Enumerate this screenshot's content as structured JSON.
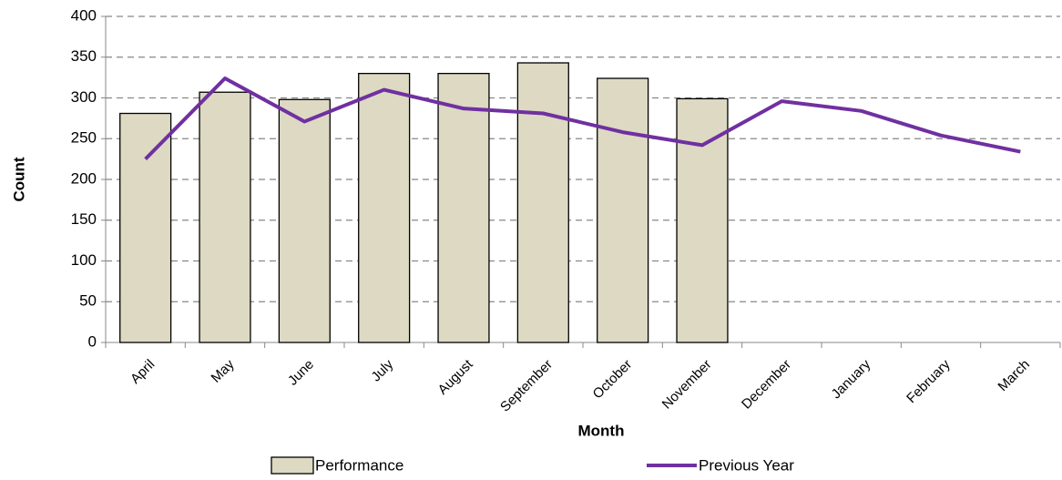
{
  "chart_data": {
    "type": "bar",
    "xlabel": "Month",
    "ylabel": "Count",
    "categories": [
      "April",
      "May",
      "June",
      "July",
      "August",
      "September",
      "October",
      "November",
      "December",
      "January",
      "February",
      "March"
    ],
    "series": [
      {
        "name": "Performance",
        "type": "bar",
        "color": "#ddd9c3",
        "values": [
          281,
          307,
          298,
          330,
          330,
          343,
          324,
          299,
          null,
          null,
          null,
          null
        ]
      },
      {
        "name": "Previous Year",
        "type": "line",
        "color": "#7030a0",
        "values": [
          225,
          324,
          271,
          310,
          287,
          281,
          258,
          242,
          296,
          284,
          254,
          234
        ]
      }
    ],
    "ylim": [
      0,
      400
    ],
    "yticks": [
      0,
      50,
      100,
      150,
      200,
      250,
      300,
      350,
      400
    ],
    "grid": true,
    "legend": "bottom"
  }
}
